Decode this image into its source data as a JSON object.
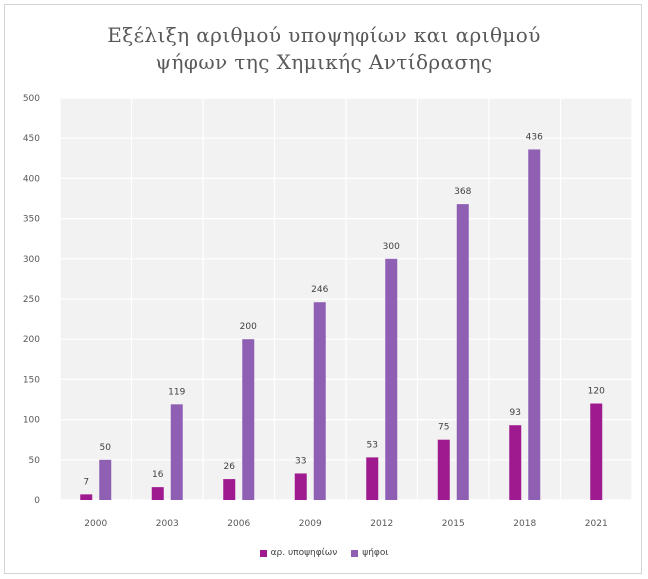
{
  "chart_data": {
    "type": "bar",
    "title_line1": "Εξέλιξη αριθμού υποψηφίων και αριθμού",
    "title_line2": "ψήφων της Χημικής Αντίδρασης",
    "categories": [
      "2000",
      "2003",
      "2006",
      "2009",
      "2012",
      "2015",
      "2018",
      "2021"
    ],
    "series": [
      {
        "name": "αρ. υποψηφίων",
        "color": "#9e1a8e",
        "values": [
          7,
          16,
          26,
          33,
          53,
          75,
          93,
          120
        ]
      },
      {
        "name": "ψήφοι",
        "color": "#8e5fb3",
        "values": [
          50,
          119,
          200,
          246,
          300,
          368,
          436,
          null
        ]
      }
    ],
    "ylim": [
      0,
      500
    ],
    "yticks": [
      "0",
      "50",
      "100",
      "150",
      "200",
      "250",
      "300",
      "350",
      "400",
      "450",
      "500"
    ],
    "grid": true,
    "legend_position": "bottom",
    "plot_background": "#f2f2f2",
    "grid_color": "#ffffff"
  }
}
